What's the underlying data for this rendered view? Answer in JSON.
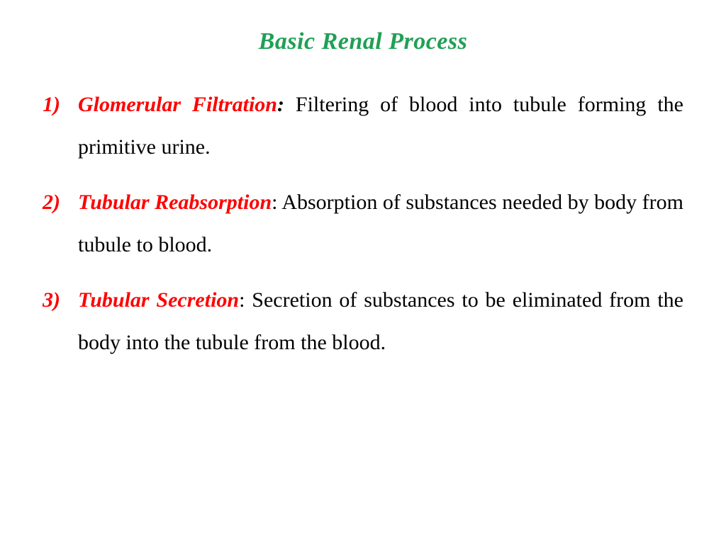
{
  "title": "Basic Renal  Process",
  "title_color": "#1fa055",
  "term_color": "#ff0000",
  "body_color": "#000000",
  "background_color": "#ffffff",
  "title_fontsize": 34,
  "body_fontsize": 30,
  "font_family": "Times New Roman",
  "items": [
    {
      "term": "Glomerular Filtration",
      "description": " Filtering of blood into tubule forming the primitive urine."
    },
    {
      "term": "Tubular Reabsorption",
      "description": " Absorption of substances needed by body from tubule to blood."
    },
    {
      "term": "Tubular Secretion",
      "description": " Secretion of substances to be eliminated from the body into the tubule from the blood."
    }
  ]
}
